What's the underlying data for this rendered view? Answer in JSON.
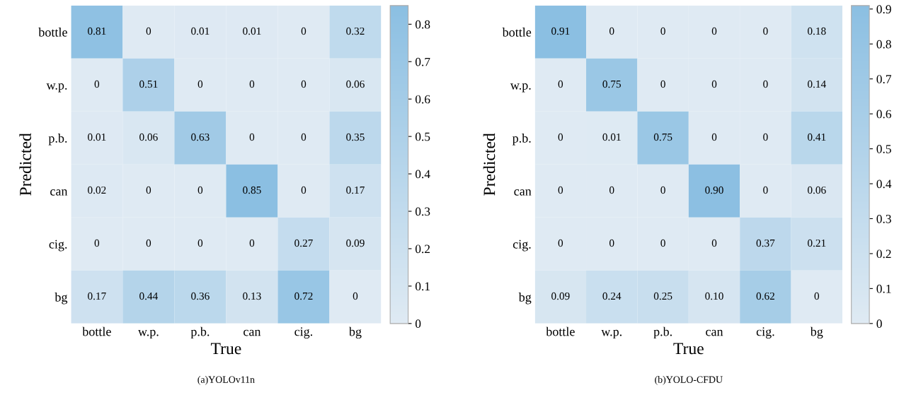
{
  "chart_data": [
    {
      "type": "heatmap",
      "xlabel": "True",
      "ylabel": "Predicted",
      "annotations": [
        "(a)YOLOv11n"
      ],
      "categories": [
        "bottle",
        "w.p.",
        "p.b.",
        "can",
        "cig.",
        "bg"
      ],
      "y_categories": [
        "bottle",
        "w.p.",
        "p.b.",
        "can",
        "cig.",
        "bg"
      ],
      "cells": [
        [
          0.81,
          0,
          0.01,
          0.01,
          0,
          0.32
        ],
        [
          0,
          0.51,
          0,
          0,
          0,
          0.06
        ],
        [
          0.01,
          0.06,
          0.63,
          0,
          0,
          0.35
        ],
        [
          0.02,
          0,
          0,
          0.85,
          0,
          0.17
        ],
        [
          0,
          0,
          0,
          0,
          0.27,
          0.09
        ],
        [
          0.17,
          0.44,
          0.36,
          0.13,
          0.72,
          0
        ]
      ],
      "cell_labels": [
        [
          "0.81",
          "0",
          "0.01",
          "0.01",
          "0",
          "0.32"
        ],
        [
          "0",
          "0.51",
          "0",
          "0",
          "0",
          "0.06"
        ],
        [
          "0.01",
          "0.06",
          "0.63",
          "0",
          "0",
          "0.35"
        ],
        [
          "0.02",
          "0",
          "0",
          "0.85",
          "0",
          "0.17"
        ],
        [
          "0",
          "0",
          "0",
          "0",
          "0.27",
          "0.09"
        ],
        [
          "0.17",
          "0.44",
          "0.36",
          "0.13",
          "0.72",
          "0"
        ]
      ],
      "clim": [
        0,
        0.85
      ],
      "cticks": [
        0,
        0.1,
        0.2,
        0.3,
        0.4,
        0.5,
        0.6,
        0.7,
        0.8
      ]
    },
    {
      "type": "heatmap",
      "xlabel": "True",
      "ylabel": "Predicted",
      "annotations": [
        "(b)YOLO-CFDU"
      ],
      "categories": [
        "bottle",
        "w.p.",
        "p.b.",
        "can",
        "cig.",
        "bg"
      ],
      "y_categories": [
        "bottle",
        "w.p.",
        "p.b.",
        "can",
        "cig.",
        "bg"
      ],
      "cells": [
        [
          0.91,
          0,
          0,
          0,
          0,
          0.18
        ],
        [
          0,
          0.75,
          0,
          0,
          0,
          0.14
        ],
        [
          0,
          0.01,
          0.75,
          0,
          0,
          0.41
        ],
        [
          0,
          0,
          0,
          0.9,
          0,
          0.06
        ],
        [
          0,
          0,
          0,
          0,
          0.37,
          0.21
        ],
        [
          0.09,
          0.24,
          0.25,
          0.1,
          0.62,
          0
        ]
      ],
      "cell_labels": [
        [
          "0.91",
          "0",
          "0",
          "0",
          "0",
          "0.18"
        ],
        [
          "0",
          "0.75",
          "0",
          "0",
          "0",
          "0.14"
        ],
        [
          "0",
          "0.01",
          "0.75",
          "0",
          "0",
          "0.41"
        ],
        [
          "0",
          "0",
          "0",
          "0.90",
          "0",
          "0.06"
        ],
        [
          "0",
          "0",
          "0",
          "0",
          "0.37",
          "0.21"
        ],
        [
          "0.09",
          "0.24",
          "0.25",
          "0.10",
          "0.62",
          "0"
        ]
      ],
      "clim": [
        0,
        0.91
      ],
      "cticks": [
        0,
        0.1,
        0.2,
        0.3,
        0.4,
        0.5,
        0.6,
        0.7,
        0.8,
        0.9
      ]
    }
  ]
}
